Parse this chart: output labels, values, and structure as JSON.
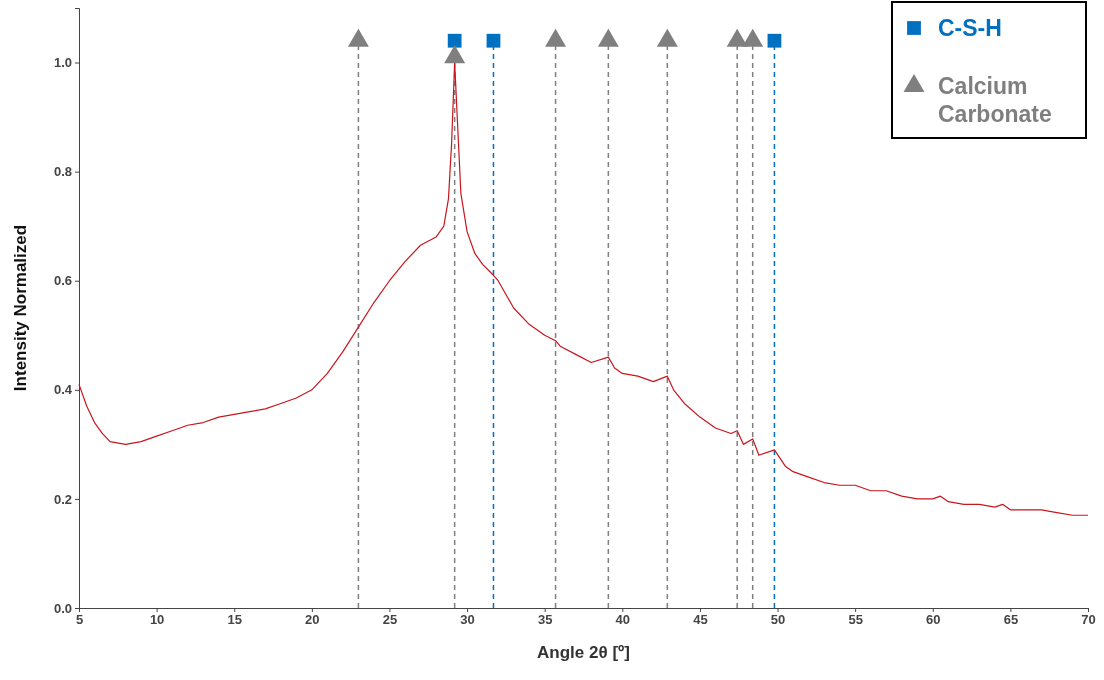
{
  "chart_data": {
    "type": "line",
    "xlabel": "Angle 2θ [º]",
    "ylabel": "Intensity Normalized",
    "xlim": [
      5,
      70
    ],
    "xticks": [
      5,
      10,
      15,
      20,
      25,
      30,
      35,
      40,
      45,
      50,
      55,
      60,
      65,
      70
    ],
    "ylim": [
      0,
      1.1
    ],
    "yticks": [
      {
        "value": 0,
        "label": "0.0"
      },
      {
        "value": 0.2,
        "label": "0.2"
      },
      {
        "value": 0.4,
        "label": "0.4"
      },
      {
        "value": 0.6,
        "label": "0.6"
      },
      {
        "value": 0.8,
        "label": "0.8"
      },
      {
        "value": 1,
        "label": "1.0"
      }
    ],
    "grid": false,
    "legend": "top right",
    "series": [
      {
        "color": "#c8161d",
        "marker": "none",
        "x": [
          5,
          5.5,
          6,
          6.5,
          7,
          8,
          9,
          10,
          11,
          12,
          13,
          14,
          15,
          16,
          17,
          18,
          19,
          20,
          21,
          22,
          23,
          24,
          25,
          26,
          27,
          28,
          28.5,
          28.8,
          29,
          29.2,
          29.4,
          29.6,
          30,
          30.5,
          31,
          31.7,
          32,
          33,
          34,
          35,
          35.7,
          36,
          37,
          38,
          39.1,
          39.5,
          40,
          41,
          42,
          42.9,
          43.3,
          44,
          45,
          46,
          47,
          47.4,
          47.8,
          48.4,
          48.8,
          49.8,
          50.5,
          51,
          52,
          53,
          54,
          55,
          56,
          57,
          58,
          59,
          60,
          60.5,
          61,
          62,
          63,
          64,
          64.5,
          65,
          66,
          67,
          68,
          69,
          70
        ],
        "values": [
          0.41,
          0.37,
          0.34,
          0.32,
          0.305,
          0.3,
          0.305,
          0.315,
          0.325,
          0.335,
          0.34,
          0.35,
          0.355,
          0.36,
          0.365,
          0.375,
          0.385,
          0.4,
          0.43,
          0.47,
          0.515,
          0.56,
          0.6,
          0.635,
          0.665,
          0.68,
          0.7,
          0.75,
          0.85,
          1.0,
          0.88,
          0.76,
          0.69,
          0.65,
          0.63,
          0.61,
          0.6,
          0.55,
          0.52,
          0.5,
          0.49,
          0.48,
          0.465,
          0.45,
          0.46,
          0.44,
          0.43,
          0.425,
          0.415,
          0.425,
          0.4,
          0.375,
          0.35,
          0.33,
          0.32,
          0.325,
          0.3,
          0.31,
          0.28,
          0.29,
          0.26,
          0.25,
          0.24,
          0.23,
          0.225,
          0.225,
          0.215,
          0.215,
          0.205,
          0.2,
          0.2,
          0.205,
          0.195,
          0.19,
          0.19,
          0.185,
          0.19,
          0.18,
          0.18,
          0.18,
          0.175,
          0.17,
          0.17
        ]
      },
      {
        "type": "scatter",
        "name": "C-S-H",
        "color": "#0070c0",
        "marker": "square",
        "x": [
          29.2,
          31.7,
          49.8
        ],
        "values": [
          1.04,
          1.04,
          1.04
        ]
      },
      {
        "type": "scatter",
        "name": "Calcium Carbonate",
        "color": "#7f7f7f",
        "marker": "triangle",
        "x": [
          23,
          29.2,
          35.7,
          39.1,
          42.9,
          47.4,
          48.4
        ],
        "values": [
          1.04,
          1.01,
          1.04,
          1.04,
          1.04,
          1.04,
          1.04
        ]
      }
    ],
    "ref_lines": [
      {
        "axis": "x",
        "value": 23,
        "color": "#7f7f7f",
        "line_style": "dashed"
      },
      {
        "axis": "x",
        "value": 29.2,
        "color": "#7f7f7f",
        "line_style": "dashed"
      },
      {
        "axis": "x",
        "value": 31.7,
        "color": "#0070c0",
        "line_style": "dashed"
      },
      {
        "axis": "x",
        "value": 35.7,
        "color": "#7f7f7f",
        "line_style": "dashed"
      },
      {
        "axis": "x",
        "value": 39.1,
        "color": "#7f7f7f",
        "line_style": "dashed"
      },
      {
        "axis": "x",
        "value": 42.9,
        "color": "#7f7f7f",
        "line_style": "dashed"
      },
      {
        "axis": "x",
        "value": 47.4,
        "color": "#7f7f7f",
        "line_style": "dashed"
      },
      {
        "axis": "x",
        "value": 48.4,
        "color": "#7f7f7f",
        "line_style": "dashed"
      },
      {
        "axis": "x",
        "value": 49.8,
        "color": "#0070c0",
        "line_style": "dashed"
      }
    ]
  }
}
